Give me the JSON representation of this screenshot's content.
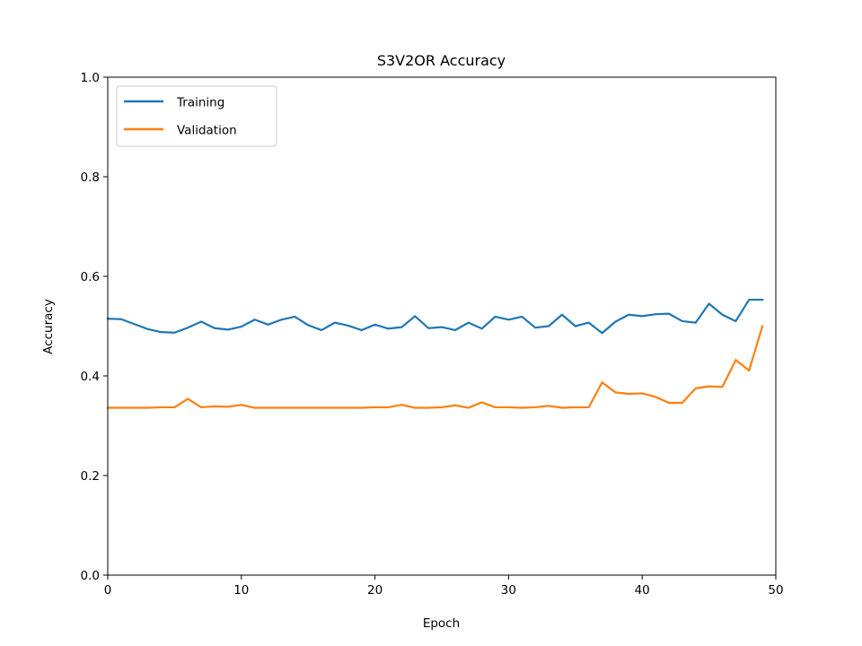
{
  "chart_data": {
    "type": "line",
    "title": "S3V2OR Accuracy",
    "xlabel": "Epoch",
    "ylabel": "Accuracy",
    "xlim": [
      0,
      50
    ],
    "ylim": [
      0,
      1
    ],
    "xticks": [
      "0",
      "10",
      "20",
      "30",
      "40",
      "50"
    ],
    "yticks": [
      "0.0",
      "0.2",
      "0.4",
      "0.6",
      "0.8",
      "1.0"
    ],
    "grid": false,
    "legend_position": "upper-left",
    "x": [
      0,
      1,
      2,
      3,
      4,
      5,
      6,
      7,
      8,
      9,
      10,
      11,
      12,
      13,
      14,
      15,
      16,
      17,
      18,
      19,
      20,
      21,
      22,
      23,
      24,
      25,
      26,
      27,
      28,
      29,
      30,
      31,
      32,
      33,
      34,
      35,
      36,
      37,
      38,
      39,
      40,
      41,
      42,
      43,
      44,
      45,
      46,
      47,
      48,
      49
    ],
    "series": [
      {
        "name": "Training",
        "color": "#1f77b4",
        "values": [
          0.515,
          0.514,
          0.504,
          0.494,
          0.488,
          0.487,
          0.497,
          0.509,
          0.496,
          0.493,
          0.499,
          0.513,
          0.503,
          0.513,
          0.519,
          0.502,
          0.492,
          0.507,
          0.501,
          0.492,
          0.503,
          0.495,
          0.498,
          0.52,
          0.496,
          0.498,
          0.492,
          0.507,
          0.495,
          0.519,
          0.513,
          0.519,
          0.497,
          0.5,
          0.523,
          0.5,
          0.507,
          0.486,
          0.509,
          0.523,
          0.52,
          0.524,
          0.525,
          0.51,
          0.507,
          0.545,
          0.523,
          0.51,
          0.553,
          0.553
        ]
      },
      {
        "name": "Validation",
        "color": "#ff7f0e",
        "values": [
          0.336,
          0.336,
          0.336,
          0.336,
          0.337,
          0.337,
          0.354,
          0.337,
          0.339,
          0.338,
          0.342,
          0.336,
          0.336,
          0.336,
          0.336,
          0.336,
          0.336,
          0.336,
          0.336,
          0.336,
          0.337,
          0.337,
          0.342,
          0.336,
          0.336,
          0.337,
          0.341,
          0.336,
          0.347,
          0.337,
          0.337,
          0.336,
          0.337,
          0.34,
          0.336,
          0.337,
          0.337,
          0.387,
          0.367,
          0.364,
          0.365,
          0.358,
          0.346,
          0.346,
          0.375,
          0.379,
          0.378,
          0.432,
          0.411,
          0.5
        ]
      }
    ]
  }
}
